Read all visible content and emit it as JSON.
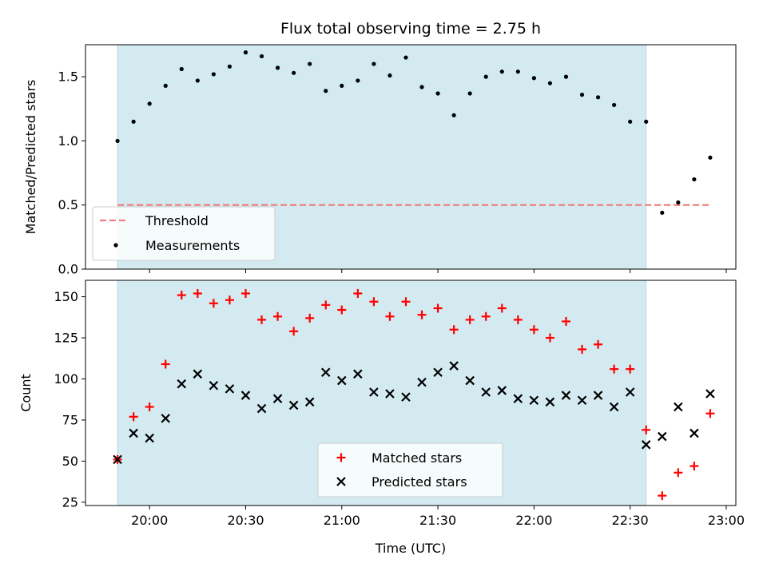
{
  "chart_data": [
    {
      "type": "scatter",
      "title": "Flux total observing time = 2.75 h",
      "ylabel": "Matched/Predicted stars",
      "xlabel": "",
      "xlim": [
        "19:40",
        "23:03"
      ],
      "ylim": [
        0,
        1.75
      ],
      "yticks": [
        0.0,
        0.5,
        1.0,
        1.5
      ],
      "ytick_labels": [
        "0.0",
        "0.5",
        "1.0",
        "1.5"
      ],
      "shaded_interval": [
        "19:50",
        "22:35"
      ],
      "shade_color": "#d3eaf1",
      "threshold": {
        "name": "Threshold",
        "value": 0.5,
        "x_range": [
          "19:50",
          "22:55"
        ],
        "color": "#f08080"
      },
      "series": [
        {
          "name": "Measurements",
          "color": "#000000",
          "marker": "dot",
          "points": [
            [
              "19:50",
              1.0
            ],
            [
              "19:55",
              1.15
            ],
            [
              "20:00",
              1.29
            ],
            [
              "20:05",
              1.43
            ],
            [
              "20:10",
              1.56
            ],
            [
              "20:15",
              1.47
            ],
            [
              "20:20",
              1.52
            ],
            [
              "20:25",
              1.58
            ],
            [
              "20:30",
              1.69
            ],
            [
              "20:35",
              1.66
            ],
            [
              "20:40",
              1.57
            ],
            [
              "20:45",
              1.53
            ],
            [
              "20:50",
              1.6
            ],
            [
              "20:55",
              1.39
            ],
            [
              "21:00",
              1.43
            ],
            [
              "21:05",
              1.47
            ],
            [
              "21:10",
              1.6
            ],
            [
              "21:15",
              1.51
            ],
            [
              "21:20",
              1.65
            ],
            [
              "21:25",
              1.42
            ],
            [
              "21:30",
              1.37
            ],
            [
              "21:35",
              1.2
            ],
            [
              "21:40",
              1.37
            ],
            [
              "21:45",
              1.5
            ],
            [
              "21:50",
              1.54
            ],
            [
              "21:55",
              1.54
            ],
            [
              "22:00",
              1.49
            ],
            [
              "22:05",
              1.45
            ],
            [
              "22:10",
              1.5
            ],
            [
              "22:15",
              1.36
            ],
            [
              "22:20",
              1.34
            ],
            [
              "22:25",
              1.28
            ],
            [
              "22:30",
              1.15
            ],
            [
              "22:35",
              1.15
            ],
            [
              "22:40",
              0.44
            ],
            [
              "22:45",
              0.52
            ],
            [
              "22:50",
              0.7
            ],
            [
              "22:55",
              0.87
            ]
          ]
        }
      ],
      "legend": {
        "position": "lower-left",
        "entries": [
          "Threshold",
          "Measurements"
        ]
      }
    },
    {
      "type": "scatter",
      "title": "",
      "ylabel": "Count",
      "xlabel": "Time (UTC)",
      "xlim": [
        "19:40",
        "23:03"
      ],
      "ylim": [
        23,
        160
      ],
      "yticks": [
        25,
        50,
        75,
        100,
        125,
        150
      ],
      "ytick_labels": [
        "25",
        "50",
        "75",
        "100",
        "125",
        "150"
      ],
      "xticks": [
        "20:00",
        "20:30",
        "21:00",
        "21:30",
        "22:00",
        "22:30",
        "23:00"
      ],
      "xtick_labels": [
        "20:00",
        "20:30",
        "21:00",
        "21:30",
        "22:00",
        "22:30",
        "23:00"
      ],
      "shaded_interval": [
        "19:50",
        "22:35"
      ],
      "shade_color": "#d3eaf1",
      "series": [
        {
          "name": "Matched stars",
          "color": "#ff0000",
          "marker": "plus",
          "points": [
            [
              "19:50",
              51
            ],
            [
              "19:55",
              77
            ],
            [
              "20:00",
              83
            ],
            [
              "20:05",
              109
            ],
            [
              "20:10",
              151
            ],
            [
              "20:15",
              152
            ],
            [
              "20:20",
              146
            ],
            [
              "20:25",
              148
            ],
            [
              "20:30",
              152
            ],
            [
              "20:35",
              136
            ],
            [
              "20:40",
              138
            ],
            [
              "20:45",
              129
            ],
            [
              "20:50",
              137
            ],
            [
              "20:55",
              145
            ],
            [
              "21:00",
              142
            ],
            [
              "21:05",
              152
            ],
            [
              "21:10",
              147
            ],
            [
              "21:15",
              138
            ],
            [
              "21:20",
              147
            ],
            [
              "21:25",
              139
            ],
            [
              "21:30",
              143
            ],
            [
              "21:35",
              130
            ],
            [
              "21:40",
              136
            ],
            [
              "21:45",
              138
            ],
            [
              "21:50",
              143
            ],
            [
              "21:55",
              136
            ],
            [
              "22:00",
              130
            ],
            [
              "22:05",
              125
            ],
            [
              "22:10",
              135
            ],
            [
              "22:15",
              118
            ],
            [
              "22:20",
              121
            ],
            [
              "22:25",
              106
            ],
            [
              "22:30",
              106
            ],
            [
              "22:35",
              69
            ],
            [
              "22:40",
              29
            ],
            [
              "22:45",
              43
            ],
            [
              "22:50",
              47
            ],
            [
              "22:55",
              79
            ]
          ]
        },
        {
          "name": "Predicted stars",
          "color": "#000000",
          "marker": "x",
          "points": [
            [
              "19:50",
              51
            ],
            [
              "19:55",
              67
            ],
            [
              "20:00",
              64
            ],
            [
              "20:05",
              76
            ],
            [
              "20:10",
              97
            ],
            [
              "20:15",
              103
            ],
            [
              "20:20",
              96
            ],
            [
              "20:25",
              94
            ],
            [
              "20:30",
              90
            ],
            [
              "20:35",
              82
            ],
            [
              "20:40",
              88
            ],
            [
              "20:45",
              84
            ],
            [
              "20:50",
              86
            ],
            [
              "20:55",
              104
            ],
            [
              "21:00",
              99
            ],
            [
              "21:05",
              103
            ],
            [
              "21:10",
              92
            ],
            [
              "21:15",
              91
            ],
            [
              "21:20",
              89
            ],
            [
              "21:25",
              98
            ],
            [
              "21:30",
              104
            ],
            [
              "21:35",
              108
            ],
            [
              "21:40",
              99
            ],
            [
              "21:45",
              92
            ],
            [
              "21:50",
              93
            ],
            [
              "21:55",
              88
            ],
            [
              "22:00",
              87
            ],
            [
              "22:05",
              86
            ],
            [
              "22:10",
              90
            ],
            [
              "22:15",
              87
            ],
            [
              "22:20",
              90
            ],
            [
              "22:25",
              83
            ],
            [
              "22:30",
              92
            ],
            [
              "22:35",
              60
            ],
            [
              "22:40",
              65
            ],
            [
              "22:45",
              83
            ],
            [
              "22:50",
              67
            ],
            [
              "22:55",
              91
            ]
          ]
        }
      ],
      "legend": {
        "position": "lower-center",
        "entries": [
          "Matched stars",
          "Predicted stars"
        ]
      }
    }
  ]
}
